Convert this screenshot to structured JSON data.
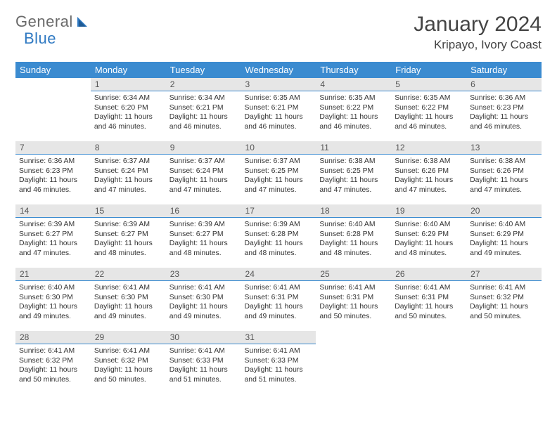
{
  "logo": {
    "text1": "General",
    "text2": "Blue"
  },
  "title": {
    "month": "January 2024",
    "location": "Kripayo, Ivory Coast"
  },
  "colors": {
    "header_bg": "#3b8bd0",
    "header_text": "#ffffff",
    "daynum_bg": "#e6e6e6",
    "daynum_border": "#3b8bd0",
    "body_text": "#333333",
    "logo_gray": "#6a6a6a",
    "logo_blue": "#2f79c2"
  },
  "weekdays": [
    "Sunday",
    "Monday",
    "Tuesday",
    "Wednesday",
    "Thursday",
    "Friday",
    "Saturday"
  ],
  "weeks": [
    [
      null,
      {
        "n": "1",
        "sr": "6:34 AM",
        "ss": "6:20 PM",
        "dl": "11 hours and 46 minutes."
      },
      {
        "n": "2",
        "sr": "6:34 AM",
        "ss": "6:21 PM",
        "dl": "11 hours and 46 minutes."
      },
      {
        "n": "3",
        "sr": "6:35 AM",
        "ss": "6:21 PM",
        "dl": "11 hours and 46 minutes."
      },
      {
        "n": "4",
        "sr": "6:35 AM",
        "ss": "6:22 PM",
        "dl": "11 hours and 46 minutes."
      },
      {
        "n": "5",
        "sr": "6:35 AM",
        "ss": "6:22 PM",
        "dl": "11 hours and 46 minutes."
      },
      {
        "n": "6",
        "sr": "6:36 AM",
        "ss": "6:23 PM",
        "dl": "11 hours and 46 minutes."
      }
    ],
    [
      {
        "n": "7",
        "sr": "6:36 AM",
        "ss": "6:23 PM",
        "dl": "11 hours and 46 minutes."
      },
      {
        "n": "8",
        "sr": "6:37 AM",
        "ss": "6:24 PM",
        "dl": "11 hours and 47 minutes."
      },
      {
        "n": "9",
        "sr": "6:37 AM",
        "ss": "6:24 PM",
        "dl": "11 hours and 47 minutes."
      },
      {
        "n": "10",
        "sr": "6:37 AM",
        "ss": "6:25 PM",
        "dl": "11 hours and 47 minutes."
      },
      {
        "n": "11",
        "sr": "6:38 AM",
        "ss": "6:25 PM",
        "dl": "11 hours and 47 minutes."
      },
      {
        "n": "12",
        "sr": "6:38 AM",
        "ss": "6:26 PM",
        "dl": "11 hours and 47 minutes."
      },
      {
        "n": "13",
        "sr": "6:38 AM",
        "ss": "6:26 PM",
        "dl": "11 hours and 47 minutes."
      }
    ],
    [
      {
        "n": "14",
        "sr": "6:39 AM",
        "ss": "6:27 PM",
        "dl": "11 hours and 47 minutes."
      },
      {
        "n": "15",
        "sr": "6:39 AM",
        "ss": "6:27 PM",
        "dl": "11 hours and 48 minutes."
      },
      {
        "n": "16",
        "sr": "6:39 AM",
        "ss": "6:27 PM",
        "dl": "11 hours and 48 minutes."
      },
      {
        "n": "17",
        "sr": "6:39 AM",
        "ss": "6:28 PM",
        "dl": "11 hours and 48 minutes."
      },
      {
        "n": "18",
        "sr": "6:40 AM",
        "ss": "6:28 PM",
        "dl": "11 hours and 48 minutes."
      },
      {
        "n": "19",
        "sr": "6:40 AM",
        "ss": "6:29 PM",
        "dl": "11 hours and 48 minutes."
      },
      {
        "n": "20",
        "sr": "6:40 AM",
        "ss": "6:29 PM",
        "dl": "11 hours and 49 minutes."
      }
    ],
    [
      {
        "n": "21",
        "sr": "6:40 AM",
        "ss": "6:30 PM",
        "dl": "11 hours and 49 minutes."
      },
      {
        "n": "22",
        "sr": "6:41 AM",
        "ss": "6:30 PM",
        "dl": "11 hours and 49 minutes."
      },
      {
        "n": "23",
        "sr": "6:41 AM",
        "ss": "6:30 PM",
        "dl": "11 hours and 49 minutes."
      },
      {
        "n": "24",
        "sr": "6:41 AM",
        "ss": "6:31 PM",
        "dl": "11 hours and 49 minutes."
      },
      {
        "n": "25",
        "sr": "6:41 AM",
        "ss": "6:31 PM",
        "dl": "11 hours and 50 minutes."
      },
      {
        "n": "26",
        "sr": "6:41 AM",
        "ss": "6:31 PM",
        "dl": "11 hours and 50 minutes."
      },
      {
        "n": "27",
        "sr": "6:41 AM",
        "ss": "6:32 PM",
        "dl": "11 hours and 50 minutes."
      }
    ],
    [
      {
        "n": "28",
        "sr": "6:41 AM",
        "ss": "6:32 PM",
        "dl": "11 hours and 50 minutes."
      },
      {
        "n": "29",
        "sr": "6:41 AM",
        "ss": "6:32 PM",
        "dl": "11 hours and 50 minutes."
      },
      {
        "n": "30",
        "sr": "6:41 AM",
        "ss": "6:33 PM",
        "dl": "11 hours and 51 minutes."
      },
      {
        "n": "31",
        "sr": "6:41 AM",
        "ss": "6:33 PM",
        "dl": "11 hours and 51 minutes."
      },
      null,
      null,
      null
    ]
  ],
  "labels": {
    "sunrise": "Sunrise:",
    "sunset": "Sunset:",
    "daylight": "Daylight:"
  }
}
